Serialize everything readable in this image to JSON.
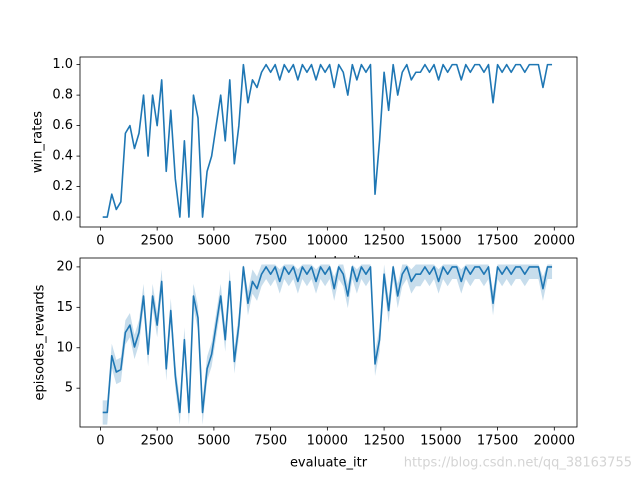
{
  "chart_data": [
    {
      "type": "line",
      "ylabel": "win_rates",
      "xlabel": "evaluate_itr",
      "xlim": [
        -900,
        21000
      ],
      "ylim": [
        -0.065,
        1.05
      ],
      "xticks": [
        0,
        2500,
        5000,
        7500,
        10000,
        12500,
        15000,
        17500,
        20000
      ],
      "yticks": [
        {
          "value": 0,
          "label": "0.0"
        },
        0.2,
        0.4,
        0.6,
        0.8,
        {
          "value": 1,
          "label": "1.0"
        }
      ],
      "series": [
        {
          "color": "#1f77b4",
          "x": [
            100,
            300,
            500,
            700,
            900,
            1100,
            1300,
            1500,
            1700,
            1900,
            2100,
            2300,
            2500,
            2700,
            2900,
            3100,
            3300,
            3500,
            3700,
            3900,
            4100,
            4300,
            4500,
            4700,
            4900,
            5100,
            5300,
            5500,
            5700,
            5900,
            6100,
            6300,
            6500,
            6700,
            6900,
            7100,
            7300,
            7500,
            7700,
            7900,
            8100,
            8300,
            8500,
            8700,
            8900,
            9100,
            9300,
            9500,
            9700,
            9900,
            10100,
            10300,
            10500,
            10700,
            10900,
            11100,
            11300,
            11500,
            11700,
            11900,
            12100,
            12300,
            12500,
            12700,
            12900,
            13100,
            13300,
            13500,
            13700,
            13900,
            14100,
            14300,
            14500,
            14700,
            14900,
            15100,
            15300,
            15500,
            15700,
            15900,
            16100,
            16300,
            16500,
            16700,
            16900,
            17100,
            17300,
            17500,
            17700,
            17900,
            18100,
            18300,
            18500,
            18700,
            18900,
            19100,
            19300,
            19500,
            19700,
            19900
          ],
          "values": [
            0,
            0,
            0.15,
            0.05,
            0.1,
            0.55,
            0.6,
            0.45,
            0.55,
            0.8,
            0.4,
            0.8,
            0.6,
            0.9,
            0.3,
            0.7,
            0.25,
            0,
            0.5,
            0,
            0.8,
            0.65,
            0,
            0.3,
            0.4,
            0.6,
            0.8,
            0.5,
            0.9,
            0.35,
            0.6,
            1,
            0.75,
            0.9,
            0.85,
            0.95,
            1,
            0.95,
            1,
            0.9,
            1,
            0.95,
            1,
            0.9,
            1,
            0.95,
            1,
            0.9,
            1,
            0.95,
            1,
            0.85,
            1,
            0.95,
            0.8,
            1,
            0.9,
            1,
            0.95,
            1,
            0.15,
            0.5,
            0.95,
            0.7,
            1,
            0.8,
            0.95,
            1,
            0.9,
            0.95,
            0.95,
            1,
            0.95,
            1,
            0.9,
            1,
            0.95,
            1,
            1,
            0.9,
            1,
            0.95,
            1,
            1,
            0.95,
            1,
            0.75,
            1,
            0.95,
            1,
            0.95,
            1,
            1,
            0.95,
            1,
            1,
            1,
            0.85,
            1,
            1
          ]
        }
      ]
    },
    {
      "type": "line",
      "ylabel": "episodes_rewards",
      "xlabel": "evaluate_itr",
      "xlim": [
        -900,
        21000
      ],
      "ylim": [
        0.2,
        21.1
      ],
      "xticks": [
        0,
        2500,
        5000,
        7500,
        10000,
        12500,
        15000,
        17500,
        20000
      ],
      "yticks": [
        5,
        10,
        15,
        20
      ],
      "series": [
        {
          "color": "#1f77b4",
          "x": [
            100,
            300,
            500,
            700,
            900,
            1100,
            1300,
            1500,
            1700,
            1900,
            2100,
            2300,
            2500,
            2700,
            2900,
            3100,
            3300,
            3500,
            3700,
            3900,
            4100,
            4300,
            4500,
            4700,
            4900,
            5100,
            5300,
            5500,
            5700,
            5900,
            6100,
            6300,
            6500,
            6700,
            6900,
            7100,
            7300,
            7500,
            7700,
            7900,
            8100,
            8300,
            8500,
            8700,
            8900,
            9100,
            9300,
            9500,
            9700,
            9900,
            10100,
            10300,
            10500,
            10700,
            10900,
            11100,
            11300,
            11500,
            11700,
            11900,
            12100,
            12300,
            12500,
            12700,
            12900,
            13100,
            13300,
            13500,
            13700,
            13900,
            14100,
            14300,
            14500,
            14700,
            14900,
            15100,
            15300,
            15500,
            15700,
            15900,
            16100,
            16300,
            16500,
            16700,
            16900,
            17100,
            17300,
            17500,
            17700,
            17900,
            18100,
            18300,
            18500,
            18700,
            18900,
            19100,
            19300,
            19500,
            19700,
            19900
          ],
          "values": [
            2,
            2,
            9,
            7,
            7.3,
            11.9,
            12.8,
            10.1,
            11.9,
            16.4,
            9.2,
            16.4,
            12.8,
            18.2,
            7.4,
            14.6,
            6.5,
            2,
            11,
            2,
            16.4,
            13.7,
            2,
            7.4,
            9.2,
            12.8,
            16.4,
            11,
            18.2,
            8.3,
            12.8,
            20,
            15.5,
            18.2,
            17.3,
            19.1,
            20,
            19.1,
            20,
            18.2,
            20,
            19.1,
            20,
            18.2,
            20,
            19.1,
            20,
            18.2,
            20,
            19.1,
            20,
            17.3,
            20,
            19.1,
            16.4,
            20,
            18.2,
            20,
            19.1,
            20,
            8,
            11,
            19.1,
            14.6,
            20,
            16.4,
            19.1,
            20,
            18.2,
            19.1,
            19.1,
            20,
            19.1,
            20,
            18.2,
            20,
            19.1,
            20,
            20,
            18.2,
            20,
            19.1,
            20,
            20,
            19.1,
            20,
            15.5,
            20,
            19.1,
            20,
            19.1,
            20,
            20,
            19.1,
            20,
            20,
            20,
            17.3,
            20,
            20
          ],
          "lower": [
            0.5,
            0.5,
            7.5,
            5.5,
            5.8,
            10.4,
            11.3,
            8.6,
            10.4,
            14.9,
            7.7,
            14.9,
            11.3,
            16.7,
            5.9,
            13.1,
            5,
            0.5,
            9.5,
            0.5,
            14.9,
            12.2,
            0.5,
            5.9,
            7.7,
            11.3,
            14.9,
            9.5,
            16.7,
            6.8,
            11.3,
            18.5,
            14,
            16.7,
            15.8,
            17.6,
            18.5,
            17.6,
            18.5,
            16.7,
            18.5,
            17.6,
            18.5,
            16.7,
            18.5,
            17.6,
            18.5,
            16.7,
            18.5,
            17.6,
            18.5,
            15.8,
            18.5,
            17.6,
            14.9,
            18.5,
            16.7,
            18.5,
            17.6,
            18.5,
            6.5,
            9.5,
            17.6,
            13.1,
            18.5,
            14.9,
            17.6,
            18.5,
            16.7,
            17.6,
            17.6,
            18.5,
            17.6,
            18.5,
            16.7,
            18.5,
            17.6,
            18.5,
            18.5,
            16.7,
            18.5,
            17.6,
            18.5,
            18.5,
            17.6,
            18.5,
            14,
            18.5,
            17.6,
            18.5,
            17.6,
            18.5,
            18.5,
            17.6,
            18.5,
            18.5,
            18.5,
            15.8,
            18.5,
            18.5
          ],
          "upper": [
            3.5,
            3.5,
            10.5,
            8.5,
            8.8,
            13.4,
            14.3,
            11.6,
            13.4,
            17.9,
            10.7,
            17.9,
            14.3,
            19.7,
            8.9,
            16.1,
            8,
            3.5,
            12.5,
            3.5,
            17.9,
            15.2,
            3.5,
            8.9,
            10.7,
            14.3,
            17.9,
            12.5,
            19.7,
            9.8,
            14.3,
            20.3,
            17,
            19.7,
            18.8,
            20.3,
            20.3,
            20.3,
            20.3,
            19.7,
            20.3,
            20.3,
            20.3,
            19.7,
            20.3,
            20.3,
            20.3,
            19.7,
            20.3,
            20.3,
            20.3,
            18.8,
            20.3,
            20.3,
            17.9,
            20.3,
            19.7,
            20.3,
            20.3,
            20.3,
            9.5,
            12.5,
            20.3,
            16.1,
            20.3,
            17.9,
            20.3,
            20.3,
            19.7,
            20.3,
            20.3,
            20.3,
            20.3,
            20.3,
            19.7,
            20.3,
            20.3,
            20.3,
            20.3,
            19.7,
            20.3,
            20.3,
            20.3,
            20.3,
            20.3,
            20.3,
            17,
            20.3,
            20.3,
            20.3,
            20.3,
            20.3,
            20.3,
            20.3,
            20.3,
            20.3,
            20.3,
            18.8,
            20.3,
            20.3
          ]
        }
      ]
    }
  ],
  "watermark": "https://blog.csdn.net/qq_38163755"
}
